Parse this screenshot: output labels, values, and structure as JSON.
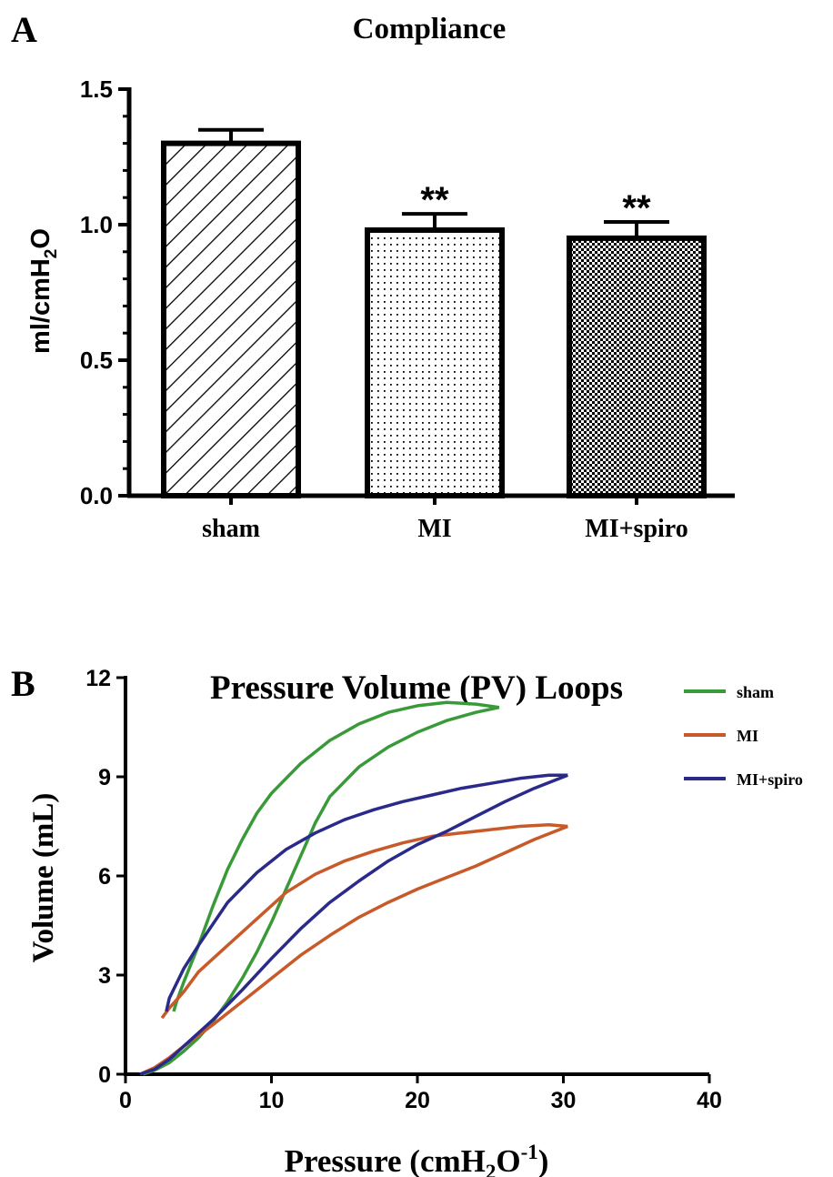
{
  "figure": {
    "panel_a_label": "A",
    "panel_b_label": "B"
  },
  "chart_data": [
    {
      "type": "bar",
      "title": "Compliance",
      "ylabel_main": "ml/cmH",
      "ylabel_sub": "2",
      "ylabel_tail": "O",
      "categories": [
        "sham",
        "MI",
        "MI+spiro"
      ],
      "values": [
        1.3,
        0.98,
        0.95
      ],
      "errors": [
        0.05,
        0.06,
        0.06
      ],
      "annotations": [
        "",
        "**",
        "**"
      ],
      "patterns": [
        "diagonal-hatch",
        "dots",
        "checker"
      ],
      "ylim": [
        0,
        1.5
      ],
      "yticks": [
        0.0,
        0.5,
        1.0,
        1.5
      ],
      "ytick_labels": [
        "0.0",
        "0.5",
        "1.0",
        "1.5"
      ]
    },
    {
      "type": "line",
      "title": "Pressure Volume (PV) Loops",
      "xlabel_main": "Pressure (cmH",
      "xlabel_sub": "2",
      "xlabel_tail": "O",
      "xlabel_sup": "-1",
      "xlabel_close": ")",
      "ylabel": "Volume (mL)",
      "xlim": [
        0,
        40
      ],
      "ylim": [
        0,
        12
      ],
      "xticks": [
        0,
        10,
        20,
        30,
        40
      ],
      "xtick_labels": [
        "0",
        "10",
        "20",
        "30",
        "40"
      ],
      "yticks": [
        0,
        3,
        6,
        9,
        12
      ],
      "ytick_labels": [
        "0",
        "3",
        "6",
        "9",
        "12"
      ],
      "legend_position": "top-right",
      "series": [
        {
          "name": "sham",
          "color": "#3a9a3a",
          "inflation": [
            [
              1.2,
              0
            ],
            [
              2,
              0.12
            ],
            [
              3,
              0.35
            ],
            [
              4,
              0.7
            ],
            [
              5,
              1.1
            ],
            [
              6,
              1.6
            ],
            [
              7,
              2.2
            ],
            [
              8,
              2.9
            ],
            [
              9,
              3.7
            ],
            [
              10,
              4.6
            ],
            [
              11,
              5.6
            ],
            [
              12,
              6.6
            ],
            [
              13,
              7.6
            ],
            [
              14,
              8.4
            ],
            [
              16,
              9.3
            ],
            [
              18,
              9.9
            ],
            [
              20,
              10.35
            ],
            [
              22,
              10.7
            ],
            [
              24,
              10.95
            ],
            [
              25.6,
              11.1
            ]
          ],
          "deflation": [
            [
              25.6,
              11.1
            ],
            [
              24,
              11.2
            ],
            [
              22,
              11.25
            ],
            [
              20,
              11.15
            ],
            [
              18,
              10.95
            ],
            [
              16,
              10.6
            ],
            [
              14,
              10.1
            ],
            [
              12,
              9.4
            ],
            [
              10,
              8.5
            ],
            [
              9,
              7.9
            ],
            [
              8,
              7.1
            ],
            [
              7,
              6.2
            ],
            [
              6,
              5.1
            ],
            [
              5,
              3.9
            ],
            [
              4,
              2.8
            ],
            [
              3.5,
              2.2
            ],
            [
              3.3,
              1.9
            ]
          ]
        },
        {
          "name": "MI",
          "color": "#c85a2a",
          "inflation": [
            [
              1,
              0
            ],
            [
              2,
              0.2
            ],
            [
              3,
              0.5
            ],
            [
              4,
              0.85
            ],
            [
              6,
              1.5
            ],
            [
              8,
              2.2
            ],
            [
              10,
              2.9
            ],
            [
              12,
              3.6
            ],
            [
              14,
              4.2
            ],
            [
              16,
              4.75
            ],
            [
              18,
              5.2
            ],
            [
              20,
              5.6
            ],
            [
              22,
              5.95
            ],
            [
              24,
              6.3
            ],
            [
              26,
              6.7
            ],
            [
              28,
              7.1
            ],
            [
              30.3,
              7.5
            ]
          ],
          "deflation": [
            [
              30.3,
              7.5
            ],
            [
              29,
              7.55
            ],
            [
              27,
              7.5
            ],
            [
              25,
              7.4
            ],
            [
              23,
              7.3
            ],
            [
              21,
              7.2
            ],
            [
              19,
              7.0
            ],
            [
              17,
              6.75
            ],
            [
              15,
              6.45
            ],
            [
              13,
              6.05
            ],
            [
              11,
              5.5
            ],
            [
              9,
              4.7
            ],
            [
              7,
              3.9
            ],
            [
              5,
              3.1
            ],
            [
              4,
              2.5
            ],
            [
              3,
              2.0
            ],
            [
              2.5,
              1.7
            ]
          ]
        },
        {
          "name": "MI+spiro",
          "color": "#2a2a8a",
          "inflation": [
            [
              1,
              0
            ],
            [
              2,
              0.15
            ],
            [
              3,
              0.45
            ],
            [
              4,
              0.85
            ],
            [
              6,
              1.65
            ],
            [
              8,
              2.55
            ],
            [
              10,
              3.5
            ],
            [
              12,
              4.4
            ],
            [
              14,
              5.2
            ],
            [
              16,
              5.85
            ],
            [
              18,
              6.45
            ],
            [
              20,
              6.95
            ],
            [
              22,
              7.35
            ],
            [
              24,
              7.8
            ],
            [
              26,
              8.25
            ],
            [
              28,
              8.65
            ],
            [
              30.3,
              9.05
            ]
          ],
          "deflation": [
            [
              30.3,
              9.05
            ],
            [
              29,
              9.05
            ],
            [
              27,
              8.95
            ],
            [
              25,
              8.8
            ],
            [
              23,
              8.65
            ],
            [
              21,
              8.45
            ],
            [
              19,
              8.25
            ],
            [
              17,
              8.0
            ],
            [
              15,
              7.7
            ],
            [
              13,
              7.3
            ],
            [
              11,
              6.8
            ],
            [
              9,
              6.1
            ],
            [
              7,
              5.2
            ],
            [
              5,
              3.9
            ],
            [
              4,
              3.2
            ],
            [
              3,
              2.3
            ],
            [
              2.8,
              1.9
            ]
          ]
        }
      ]
    }
  ]
}
